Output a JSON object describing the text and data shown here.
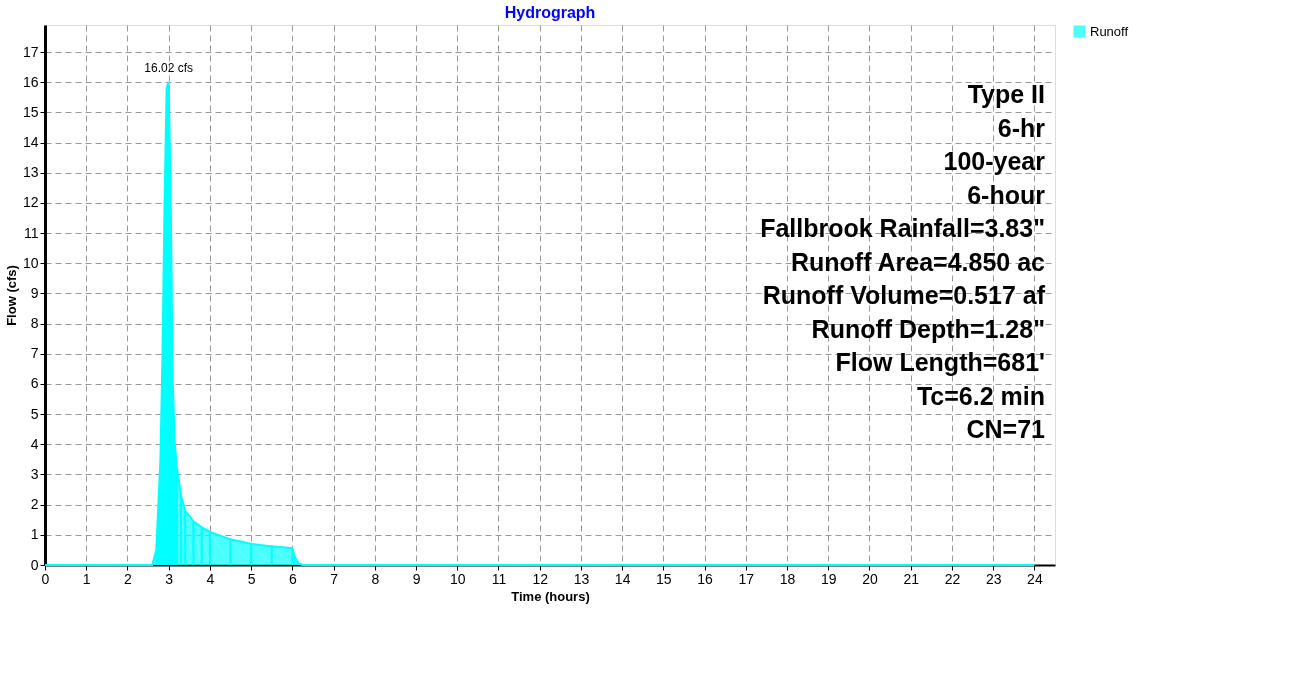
{
  "chart_data": {
    "type": "area",
    "title": "Hydrograph",
    "xlabel": "Time  (hours)",
    "ylabel": "Flow  (cfs)",
    "x": [
      0,
      2.6,
      2.7,
      2.75,
      2.8,
      2.85,
      2.9,
      2.95,
      3.0,
      3.05,
      3.1,
      3.15,
      3.2,
      3.3,
      3.4,
      3.6,
      3.8,
      4.0,
      4.5,
      5.0,
      5.5,
      6.0,
      6.05,
      6.15,
      6.25,
      24
    ],
    "series": [
      {
        "name": "Runoff",
        "color": "#00ffff",
        "values": [
          0,
          0,
          0.5,
          2.0,
          3.5,
          7.0,
          12.0,
          15.8,
          16.02,
          12.0,
          6.0,
          4.0,
          3.2,
          2.3,
          1.8,
          1.45,
          1.25,
          1.1,
          0.85,
          0.7,
          0.62,
          0.56,
          0.3,
          0.05,
          0,
          0
        ]
      }
    ],
    "xlim": [
      0,
      24.5
    ],
    "ylim": [
      0,
      17.9
    ],
    "xticks": [
      0,
      1,
      2,
      3,
      4,
      5,
      6,
      7,
      8,
      9,
      10,
      11,
      12,
      13,
      14,
      15,
      16,
      17,
      18,
      19,
      20,
      21,
      22,
      23,
      24
    ],
    "yticks": [
      0,
      1,
      2,
      3,
      4,
      5,
      6,
      7,
      8,
      9,
      10,
      11,
      12,
      13,
      14,
      15,
      16,
      17
    ],
    "annotations": [
      {
        "text": "16.02 cfs",
        "x": 3.0,
        "y": 16.02
      },
      "Type II",
      "6-hr",
      "100-year",
      "6-hour",
      "Fallbrook Rainfall=3.83\"",
      "Runoff Area=4.850 ac",
      "Runoff Volume=0.517 af",
      "Runoff Depth=1.28\"",
      "Flow Length=681'",
      "Tc=6.2 min",
      "CN=71"
    ],
    "grid": true,
    "legend": "top right"
  }
}
